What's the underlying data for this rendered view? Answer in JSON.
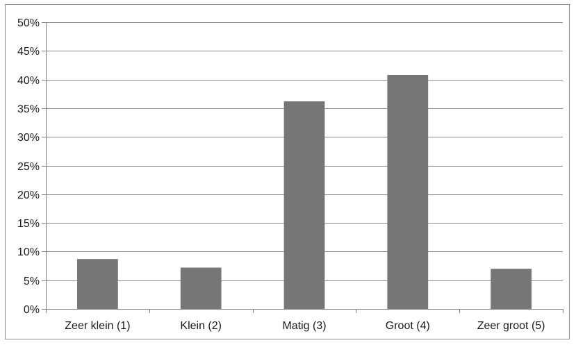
{
  "chart_data": {
    "type": "bar",
    "categories": [
      "Zeer klein (1)",
      "Klein (2)",
      "Matig (3)",
      "Groot (4)",
      "Zeer groot (5)"
    ],
    "values": [
      8.7,
      7.2,
      36.2,
      40.8,
      7.0
    ],
    "ylim": [
      0,
      50
    ],
    "yticks": [
      0,
      5,
      10,
      15,
      20,
      25,
      30,
      35,
      40,
      45,
      50
    ],
    "ytick_labels": [
      "0%",
      "5%",
      "10%",
      "15%",
      "20%",
      "25%",
      "30%",
      "35%",
      "40%",
      "45%",
      "50%"
    ],
    "grid": true,
    "legend": "none",
    "bar_color": "#767676",
    "grid_color": "#8a8a8a",
    "axis_color": "#7f7f7f"
  }
}
